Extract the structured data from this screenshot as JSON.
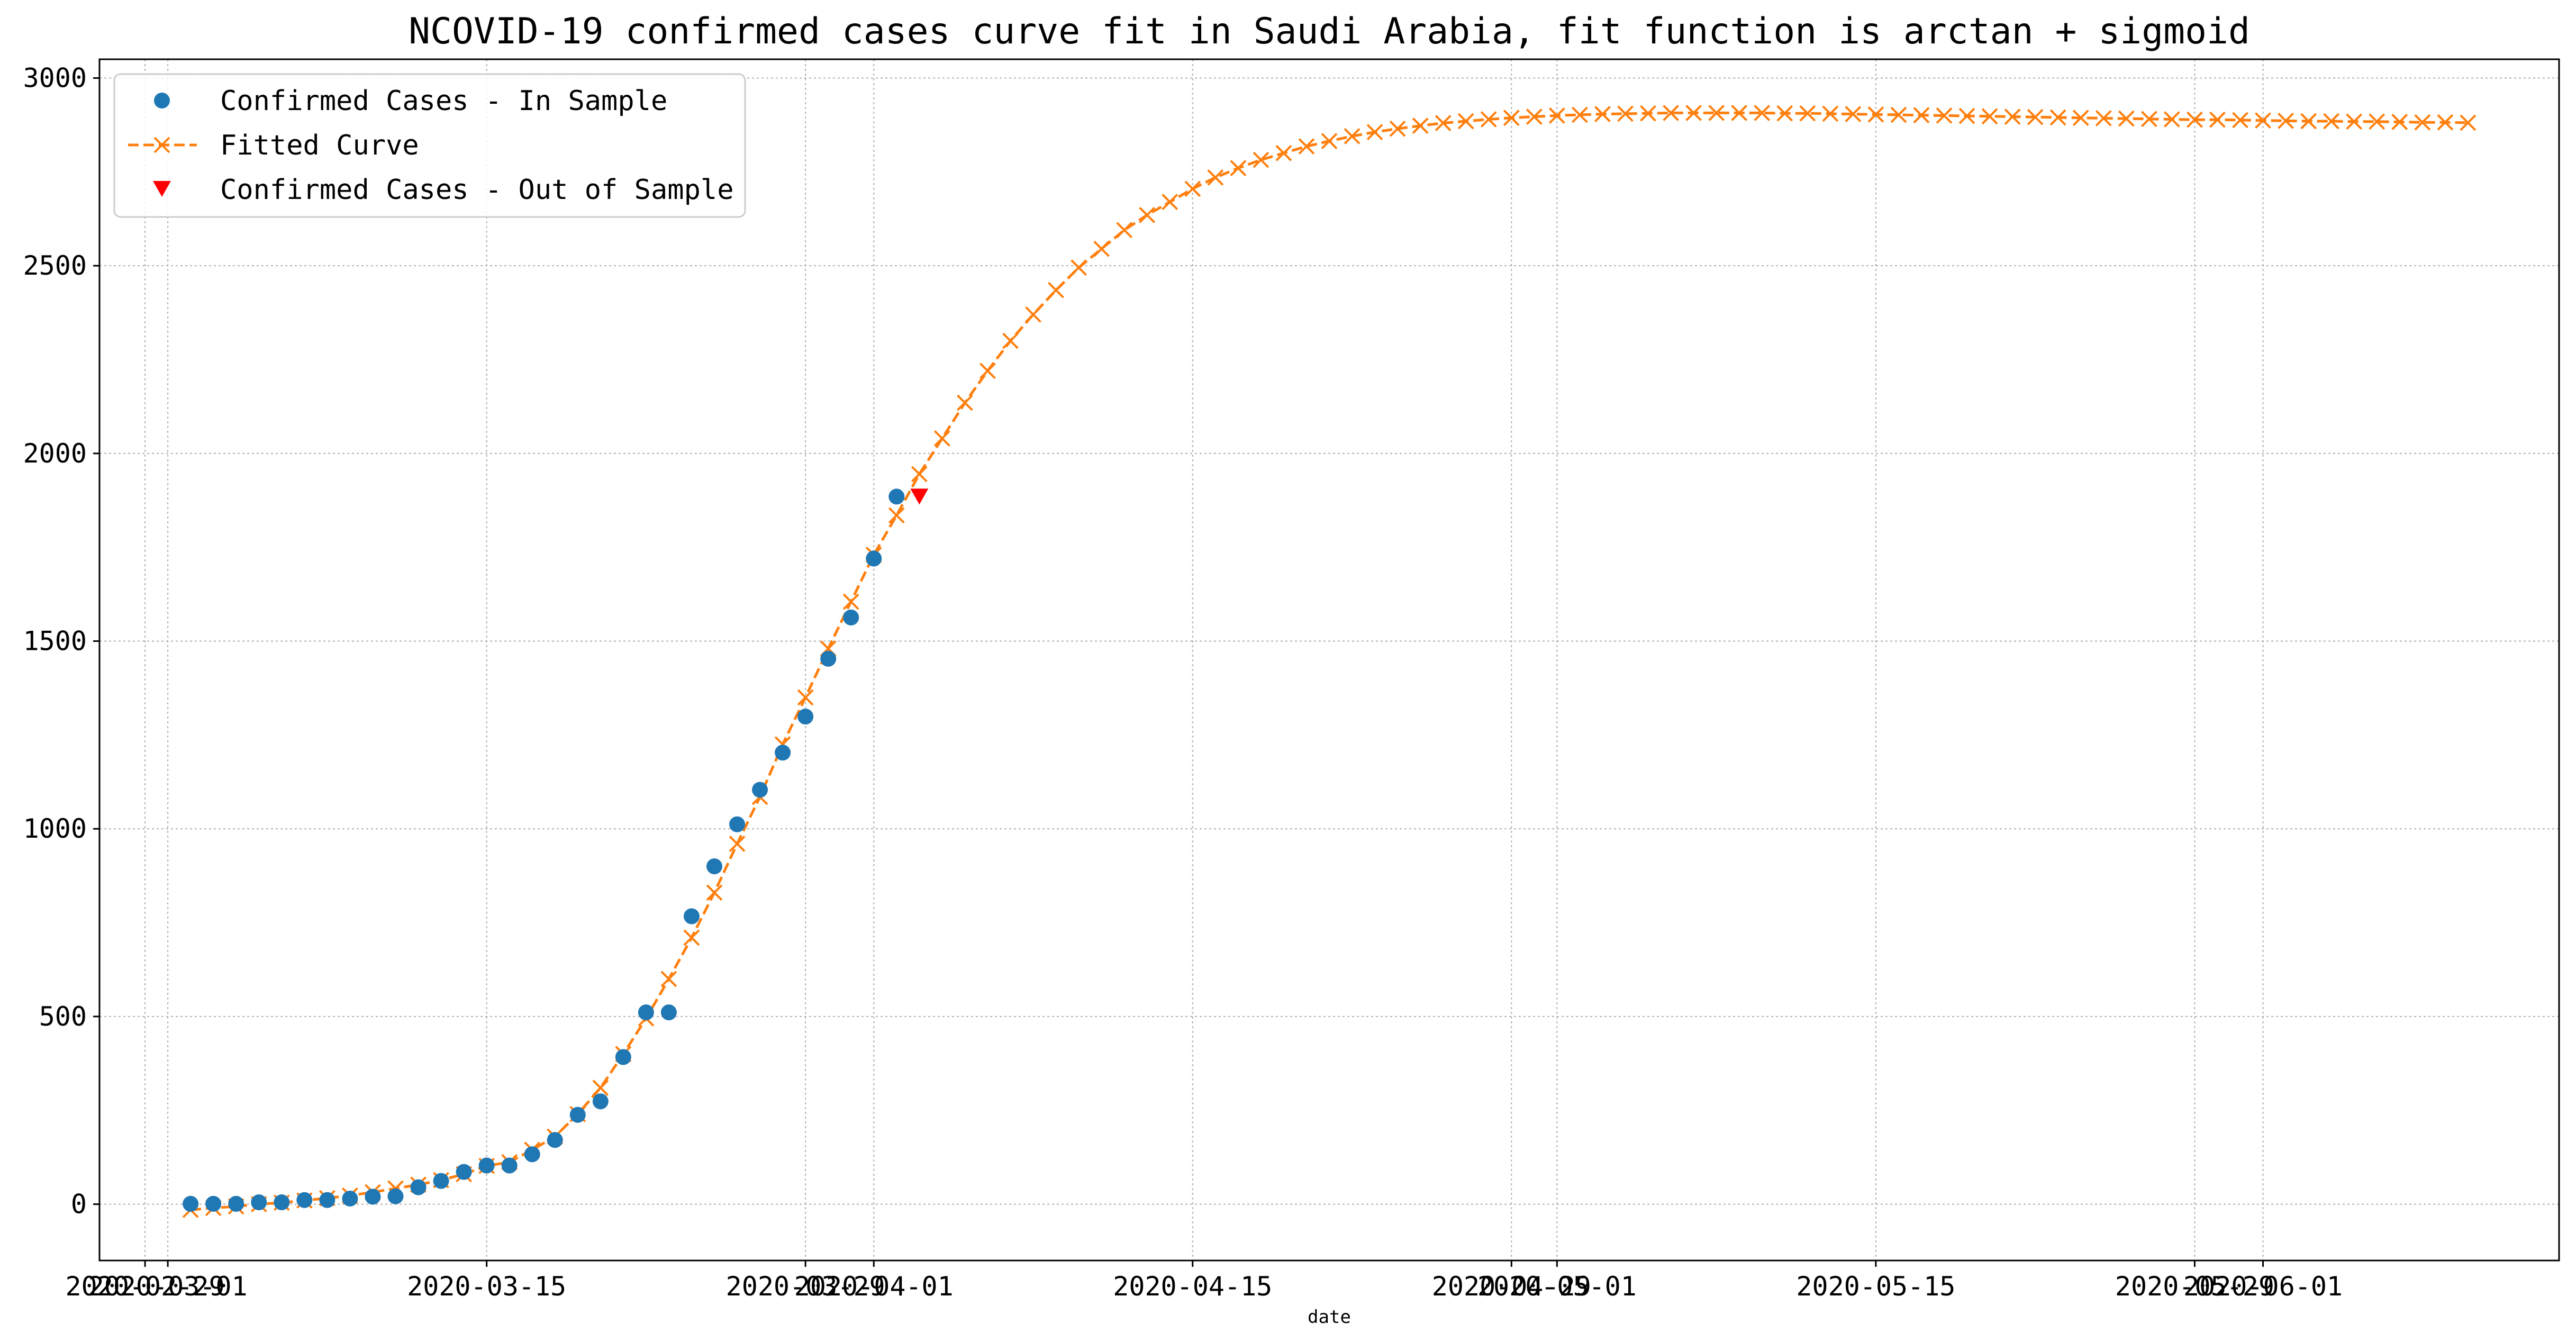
{
  "chart_data": {
    "type": "line",
    "title": "NCOVID-19 confirmed cases curve fit in Saudi Arabia, fit function is arctan + sigmoid",
    "xlabel": "date",
    "ylabel": "",
    "ylim": [
      -150,
      3050
    ],
    "xlim": [
      "2020-02-27",
      "2020-06-14"
    ],
    "grid": true,
    "legend_position": "top-left",
    "x_ticks": [
      {
        "date": "2020-03-01",
        "label": "2020-03-01"
      },
      {
        "date": "2020-03-15",
        "label": "2020-03-15"
      },
      {
        "date": "2020-04-01",
        "label": "2020-04-01"
      },
      {
        "date": "2020-04-15",
        "label": "2020-04-15"
      },
      {
        "date": "2020-05-01",
        "label": "2020-05-01"
      },
      {
        "date": "2020-05-15",
        "label": "2020-05-15"
      },
      {
        "date": "2020-06-01",
        "label": "2020-06-01"
      }
    ],
    "x_ticks_overlapping": [
      {
        "date": "2020-02-29",
        "label": "2020-02-29"
      },
      {
        "date": "2020-03-29",
        "label": "2020-03-29"
      },
      {
        "date": "2020-04-29",
        "label": "2020-04-29"
      },
      {
        "date": "2020-05-29",
        "label": "2020-05-29"
      }
    ],
    "y_ticks": [
      0,
      500,
      1000,
      1500,
      2000,
      2500,
      3000
    ],
    "colors": {
      "in_sample": "#1f77b4",
      "fitted": "#ff7f0e",
      "out_sample": "#ff0000",
      "grid": "#b0b0b0"
    },
    "series": [
      {
        "name": "Confirmed Cases - In Sample",
        "marker": "circle",
        "color": "#1f77b4",
        "x": [
          "2020-03-02",
          "2020-03-03",
          "2020-03-04",
          "2020-03-05",
          "2020-03-06",
          "2020-03-07",
          "2020-03-08",
          "2020-03-09",
          "2020-03-10",
          "2020-03-11",
          "2020-03-12",
          "2020-03-13",
          "2020-03-14",
          "2020-03-15",
          "2020-03-16",
          "2020-03-17",
          "2020-03-18",
          "2020-03-19",
          "2020-03-20",
          "2020-03-21",
          "2020-03-22",
          "2020-03-23",
          "2020-03-24",
          "2020-03-25",
          "2020-03-26",
          "2020-03-27",
          "2020-03-28",
          "2020-03-29",
          "2020-03-30",
          "2020-03-31",
          "2020-04-01",
          "2020-04-02"
        ],
        "y": [
          1,
          1,
          1,
          5,
          5,
          11,
          11,
          15,
          20,
          21,
          45,
          62,
          86,
          103,
          103,
          133,
          171,
          238,
          274,
          392,
          511,
          511,
          767,
          900,
          1012,
          1104,
          1203,
          1299,
          1453,
          1563,
          1720,
          1885
        ]
      },
      {
        "name": "Fitted Curve",
        "marker": "x",
        "line": "dashed",
        "color": "#ff7f0e",
        "x_start": "2020-03-02",
        "x_step_days": 1,
        "y": [
          -15,
          -10,
          -6,
          0,
          4,
          10,
          16,
          23,
          32,
          42,
          52,
          64,
          80,
          102,
          112,
          145,
          180,
          240,
          310,
          400,
          495,
          600,
          710,
          830,
          960,
          1085,
          1225,
          1350,
          1480,
          1605,
          1730,
          1835,
          1945,
          2040,
          2135,
          2220,
          2300,
          2370,
          2435,
          2495,
          2545,
          2595,
          2635,
          2670,
          2705,
          2735,
          2760,
          2782,
          2800,
          2818,
          2832,
          2845,
          2856,
          2865,
          2873,
          2880,
          2885,
          2890,
          2894,
          2897,
          2900,
          2902,
          2904,
          2905,
          2906,
          2907,
          2907,
          2907,
          2907,
          2907,
          2906,
          2906,
          2905,
          2904,
          2903,
          2902,
          2901,
          2900,
          2899,
          2898,
          2897,
          2896,
          2895,
          2894,
          2893,
          2892,
          2891,
          2890,
          2889,
          2889,
          2888,
          2887,
          2886,
          2885,
          2885,
          2884,
          2884,
          2883,
          2882,
          2882,
          2881
        ]
      },
      {
        "name": "Confirmed Cases - Out of Sample",
        "marker": "triangle-down",
        "color": "#ff0000",
        "x": [
          "2020-04-03"
        ],
        "y": [
          1885
        ]
      }
    ]
  }
}
